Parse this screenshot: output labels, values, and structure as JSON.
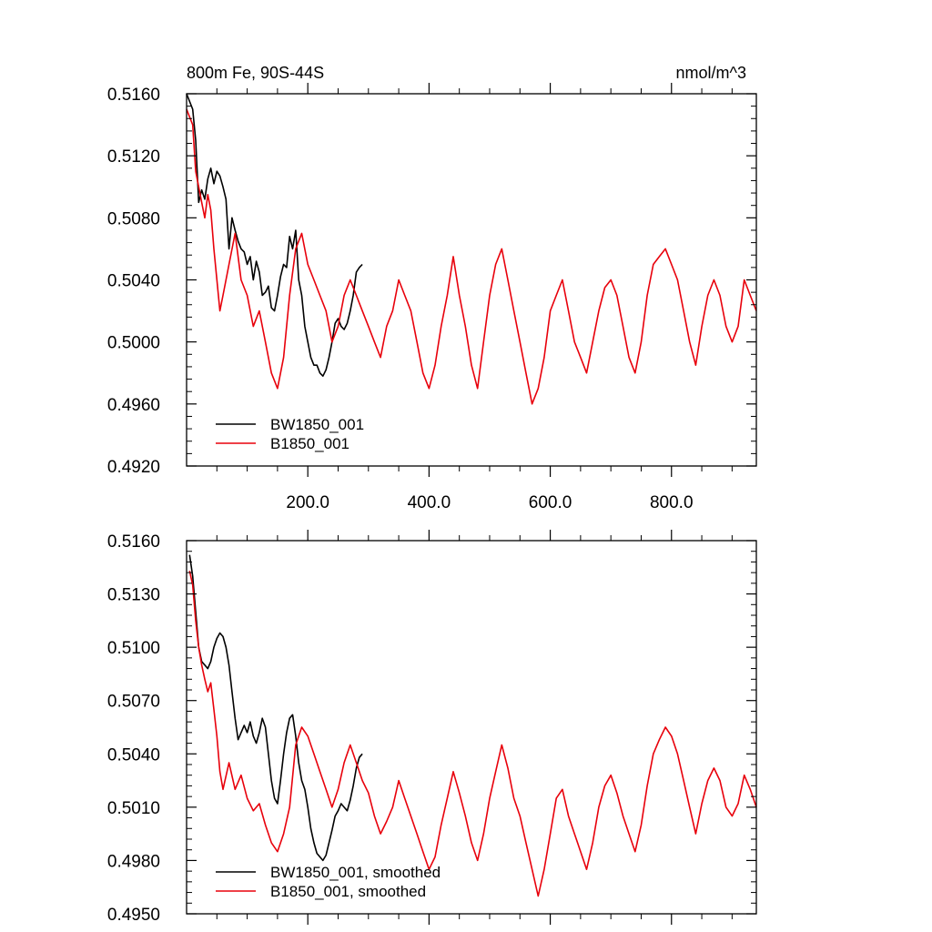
{
  "chart_data": [
    {
      "type": "line",
      "title": "800m Fe, 90S-44S",
      "units": "nmol/m^3",
      "xlabel": "",
      "ylabel": "",
      "xlim": [
        0,
        940
      ],
      "ylim": [
        0.492,
        0.516
      ],
      "yticks": [
        "0.4920",
        "0.4960",
        "0.5000",
        "0.5040",
        "0.5080",
        "0.5120",
        "0.5160"
      ],
      "xticks": [
        "200.0",
        "400.0",
        "600.0",
        "800.0"
      ],
      "xtick_values": [
        200,
        400,
        600,
        800
      ],
      "grid": false,
      "legend_position": "bottom-left",
      "series": [
        {
          "name": "BW1850_001",
          "color": "#000000",
          "x": [
            0,
            10,
            15,
            20,
            25,
            30,
            35,
            40,
            45,
            50,
            55,
            60,
            65,
            70,
            75,
            80,
            85,
            90,
            95,
            100,
            105,
            110,
            115,
            120,
            125,
            130,
            135,
            140,
            145,
            150,
            155,
            160,
            165,
            170,
            175,
            180,
            185,
            190,
            195,
            200,
            205,
            210,
            215,
            220,
            225,
            230,
            235,
            240,
            245,
            250,
            255,
            260,
            265,
            270,
            275,
            280,
            285,
            290
          ],
          "y": [
            0.516,
            0.515,
            0.513,
            0.509,
            0.5098,
            0.5092,
            0.5105,
            0.5112,
            0.5102,
            0.511,
            0.5107,
            0.51,
            0.5092,
            0.506,
            0.508,
            0.5072,
            0.5065,
            0.506,
            0.5058,
            0.505,
            0.5055,
            0.504,
            0.5052,
            0.5045,
            0.503,
            0.5032,
            0.5036,
            0.5022,
            0.502,
            0.503,
            0.5042,
            0.505,
            0.5048,
            0.5068,
            0.506,
            0.5072,
            0.504,
            0.503,
            0.501,
            0.5,
            0.499,
            0.4985,
            0.4985,
            0.498,
            0.4978,
            0.4982,
            0.499,
            0.5,
            0.5012,
            0.5015,
            0.501,
            0.5008,
            0.5012,
            0.502,
            0.503,
            0.5045,
            0.5048,
            0.505
          ]
        },
        {
          "name": "B1850_001",
          "color": "#e8000b",
          "x": [
            0,
            10,
            15,
            20,
            25,
            30,
            35,
            40,
            45,
            50,
            55,
            60,
            70,
            80,
            90,
            100,
            110,
            120,
            130,
            140,
            150,
            160,
            170,
            180,
            190,
            200,
            210,
            220,
            230,
            240,
            250,
            260,
            270,
            280,
            290,
            300,
            310,
            320,
            330,
            340,
            350,
            360,
            370,
            380,
            390,
            400,
            410,
            420,
            430,
            440,
            450,
            460,
            470,
            480,
            490,
            500,
            510,
            520,
            530,
            540,
            550,
            560,
            570,
            580,
            590,
            600,
            610,
            620,
            630,
            640,
            650,
            660,
            670,
            680,
            690,
            700,
            710,
            720,
            730,
            740,
            750,
            760,
            770,
            780,
            790,
            800,
            810,
            820,
            830,
            840,
            850,
            860,
            870,
            880,
            890,
            900,
            910,
            920,
            930,
            940
          ],
          "y": [
            0.515,
            0.514,
            0.511,
            0.51,
            0.509,
            0.508,
            0.5095,
            0.5085,
            0.506,
            0.504,
            0.502,
            0.503,
            0.505,
            0.507,
            0.504,
            0.503,
            0.501,
            0.502,
            0.5,
            0.498,
            0.497,
            0.499,
            0.503,
            0.506,
            0.507,
            0.505,
            0.504,
            0.503,
            0.502,
            0.5,
            0.501,
            0.503,
            0.504,
            0.503,
            0.502,
            0.501,
            0.5,
            0.499,
            0.501,
            0.502,
            0.504,
            0.503,
            0.502,
            0.5,
            0.498,
            0.497,
            0.4985,
            0.501,
            0.503,
            0.5055,
            0.503,
            0.501,
            0.4985,
            0.497,
            0.5,
            0.503,
            0.505,
            0.506,
            0.504,
            0.502,
            0.5,
            0.498,
            0.496,
            0.497,
            0.499,
            0.502,
            0.503,
            0.504,
            0.502,
            0.5,
            0.499,
            0.498,
            0.5,
            0.502,
            0.5035,
            0.504,
            0.503,
            0.501,
            0.499,
            0.498,
            0.5,
            0.503,
            0.505,
            0.5055,
            0.506,
            0.505,
            0.504,
            0.502,
            0.5,
            0.4985,
            0.501,
            0.503,
            0.504,
            0.503,
            0.501,
            0.5,
            0.501,
            0.504,
            0.503,
            0.502
          ]
        }
      ]
    },
    {
      "type": "line",
      "title": "",
      "xlabel": "",
      "ylabel": "",
      "xlim": [
        0,
        940
      ],
      "ylim": [
        0.495,
        0.516
      ],
      "yticks": [
        "0.4950",
        "0.4980",
        "0.5010",
        "0.5040",
        "0.5070",
        "0.5100",
        "0.5130",
        "0.5160"
      ],
      "xticks": [],
      "xtick_values": [
        200,
        400,
        600,
        800
      ],
      "grid": false,
      "legend_position": "bottom-left",
      "series": [
        {
          "name": "BW1850_001, smoothed",
          "color": "#000000",
          "x": [
            5,
            10,
            15,
            20,
            25,
            30,
            35,
            40,
            45,
            50,
            55,
            60,
            65,
            70,
            75,
            80,
            85,
            90,
            95,
            100,
            105,
            110,
            115,
            120,
            125,
            130,
            135,
            140,
            145,
            150,
            155,
            160,
            165,
            170,
            175,
            180,
            185,
            190,
            195,
            200,
            205,
            210,
            215,
            220,
            225,
            230,
            235,
            240,
            245,
            250,
            255,
            260,
            265,
            270,
            275,
            280,
            285,
            290
          ],
          "y": [
            0.5152,
            0.514,
            0.512,
            0.51,
            0.5092,
            0.509,
            0.5088,
            0.5092,
            0.51,
            0.5105,
            0.5108,
            0.5106,
            0.51,
            0.509,
            0.5075,
            0.506,
            0.5048,
            0.5052,
            0.5056,
            0.5052,
            0.5058,
            0.505,
            0.5046,
            0.5052,
            0.506,
            0.5055,
            0.504,
            0.5025,
            0.5015,
            0.5012,
            0.5025,
            0.504,
            0.5052,
            0.506,
            0.5062,
            0.505,
            0.5035,
            0.5025,
            0.502,
            0.501,
            0.4998,
            0.499,
            0.4984,
            0.4982,
            0.498,
            0.4983,
            0.499,
            0.4997,
            0.5005,
            0.5008,
            0.5012,
            0.501,
            0.5008,
            0.5014,
            0.5022,
            0.5032,
            0.5038,
            0.504
          ]
        },
        {
          "name": "B1850_001, smoothed",
          "color": "#e8000b",
          "x": [
            5,
            10,
            15,
            20,
            25,
            30,
            35,
            40,
            45,
            50,
            55,
            60,
            70,
            80,
            90,
            100,
            110,
            120,
            130,
            140,
            150,
            160,
            170,
            180,
            190,
            200,
            210,
            220,
            230,
            240,
            250,
            260,
            270,
            280,
            290,
            300,
            310,
            320,
            330,
            340,
            350,
            360,
            370,
            380,
            390,
            400,
            410,
            420,
            430,
            440,
            450,
            460,
            470,
            480,
            490,
            500,
            510,
            520,
            530,
            540,
            550,
            560,
            570,
            580,
            590,
            600,
            610,
            620,
            630,
            640,
            650,
            660,
            670,
            680,
            690,
            700,
            710,
            720,
            730,
            740,
            750,
            760,
            770,
            780,
            790,
            800,
            810,
            820,
            830,
            840,
            850,
            860,
            870,
            880,
            890,
            900,
            910,
            920,
            930,
            940
          ],
          "y": [
            0.5143,
            0.5135,
            0.5115,
            0.51,
            0.509,
            0.5082,
            0.5075,
            0.508,
            0.5065,
            0.505,
            0.503,
            0.502,
            0.5035,
            0.502,
            0.5028,
            0.5015,
            0.5008,
            0.5012,
            0.5,
            0.499,
            0.4985,
            0.4995,
            0.501,
            0.5045,
            0.5055,
            0.505,
            0.504,
            0.503,
            0.502,
            0.501,
            0.502,
            0.5035,
            0.5045,
            0.5035,
            0.5025,
            0.5018,
            0.5005,
            0.4995,
            0.5002,
            0.501,
            0.5025,
            0.5015,
            0.5005,
            0.4995,
            0.4985,
            0.4975,
            0.4982,
            0.5,
            0.5015,
            0.503,
            0.5018,
            0.5005,
            0.499,
            0.498,
            0.4995,
            0.5015,
            0.503,
            0.5045,
            0.5032,
            0.5015,
            0.5005,
            0.499,
            0.4975,
            0.496,
            0.4975,
            0.4995,
            0.5015,
            0.502,
            0.5005,
            0.4995,
            0.4985,
            0.4975,
            0.499,
            0.501,
            0.5022,
            0.5028,
            0.5018,
            0.5005,
            0.4995,
            0.4985,
            0.5,
            0.5022,
            0.504,
            0.5048,
            0.5055,
            0.505,
            0.504,
            0.5025,
            0.501,
            0.4995,
            0.5012,
            0.5025,
            0.5032,
            0.5025,
            0.501,
            0.5005,
            0.5012,
            0.5028,
            0.502,
            0.501
          ]
        }
      ]
    }
  ]
}
